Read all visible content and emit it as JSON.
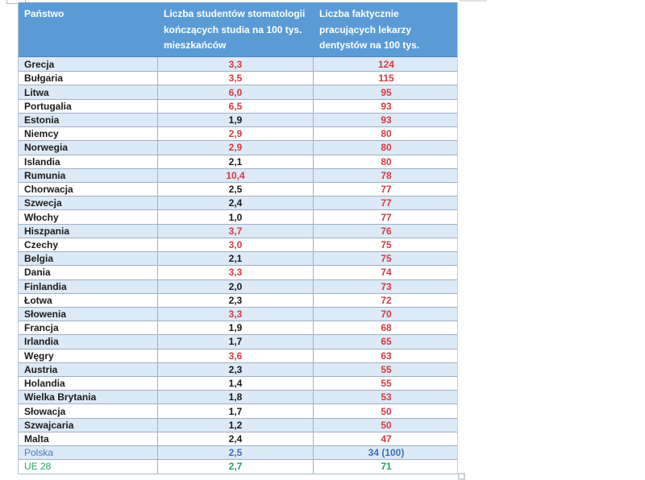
{
  "colors": {
    "header_bg": "#5B9BD5",
    "header_text": "#FFFFFF",
    "alt_row_bg": "#DCE9F6",
    "plain_row_bg": "#FFFFFF",
    "grid_border": "#9FB0C4",
    "red_value": "#D43B44",
    "black_value": "#1B1B1B",
    "poland_blue": "#3D6EB6",
    "eu_green": "#21A35C"
  },
  "table": {
    "header": {
      "col1": "Państwo",
      "col2": "Liczba studentów stomatologii kończących studia na 100 tys. mieszkańców",
      "col3": "Liczba faktycznie pracujących lekarzy dentystów na 100 tys. mieszkańców"
    },
    "rows": [
      {
        "country": "Grecja",
        "students": "3,3",
        "students_color": "red",
        "dentists": "124",
        "dentists_color": "red",
        "theme": "default"
      },
      {
        "country": "Bułgaria",
        "students": "3,5",
        "students_color": "red",
        "dentists": "115",
        "dentists_color": "red",
        "theme": "default"
      },
      {
        "country": "Litwa",
        "students": "6,0",
        "students_color": "red",
        "dentists": "95",
        "dentists_color": "red",
        "theme": "default"
      },
      {
        "country": "Portugalia",
        "students": "6,5",
        "students_color": "red",
        "dentists": "93",
        "dentists_color": "red",
        "theme": "default"
      },
      {
        "country": "Estonia",
        "students": "1,9",
        "students_color": "black",
        "dentists": "93",
        "dentists_color": "red",
        "theme": "default"
      },
      {
        "country": "Niemcy",
        "students": "2,9",
        "students_color": "red",
        "dentists": "80",
        "dentists_color": "red",
        "theme": "default"
      },
      {
        "country": "Norwegia",
        "students": "2,9",
        "students_color": "red",
        "dentists": "80",
        "dentists_color": "red",
        "theme": "default"
      },
      {
        "country": "Islandia",
        "students": "2,1",
        "students_color": "black",
        "dentists": "80",
        "dentists_color": "red",
        "theme": "default"
      },
      {
        "country": "Rumunia",
        "students": "10,4",
        "students_color": "red",
        "dentists": "78",
        "dentists_color": "red",
        "theme": "default"
      },
      {
        "country": "Chorwacja",
        "students": "2,5",
        "students_color": "black",
        "dentists": "77",
        "dentists_color": "red",
        "theme": "default"
      },
      {
        "country": "Szwecja",
        "students": "2,4",
        "students_color": "black",
        "dentists": "77",
        "dentists_color": "red",
        "theme": "default"
      },
      {
        "country": "Włochy",
        "students": "1,0",
        "students_color": "black",
        "dentists": "77",
        "dentists_color": "red",
        "theme": "default"
      },
      {
        "country": "Hiszpania",
        "students": "3,7",
        "students_color": "red",
        "dentists": "76",
        "dentists_color": "red",
        "theme": "default"
      },
      {
        "country": "Czechy",
        "students": "3,0",
        "students_color": "red",
        "dentists": "75",
        "dentists_color": "red",
        "theme": "default"
      },
      {
        "country": "Belgia",
        "students": "2,1",
        "students_color": "black",
        "dentists": "75",
        "dentists_color": "red",
        "theme": "default"
      },
      {
        "country": "Dania",
        "students": "3,3",
        "students_color": "red",
        "dentists": "74",
        "dentists_color": "red",
        "theme": "default"
      },
      {
        "country": "Finlandia",
        "students": "2,0",
        "students_color": "black",
        "dentists": "73",
        "dentists_color": "red",
        "theme": "default"
      },
      {
        "country": "Łotwa",
        "students": "2,3",
        "students_color": "black",
        "dentists": "72",
        "dentists_color": "red",
        "theme": "default"
      },
      {
        "country": "Słowenia",
        "students": "3,3",
        "students_color": "red",
        "dentists": "70",
        "dentists_color": "red",
        "theme": "default"
      },
      {
        "country": "Francja",
        "students": "1,9",
        "students_color": "black",
        "dentists": "68",
        "dentists_color": "red",
        "theme": "default"
      },
      {
        "country": "Irlandia",
        "students": "1,7",
        "students_color": "black",
        "dentists": "65",
        "dentists_color": "red",
        "theme": "default"
      },
      {
        "country": "Węgry",
        "students": "3,6",
        "students_color": "red",
        "dentists": "63",
        "dentists_color": "red",
        "theme": "default"
      },
      {
        "country": "Austria",
        "students": "2,3",
        "students_color": "black",
        "dentists": "55",
        "dentists_color": "red",
        "theme": "default"
      },
      {
        "country": "Holandia",
        "students": "1,4",
        "students_color": "black",
        "dentists": "55",
        "dentists_color": "red",
        "theme": "default"
      },
      {
        "country": "Wielka Brytania",
        "students": "1,8",
        "students_color": "black",
        "dentists": "53",
        "dentists_color": "red",
        "theme": "default"
      },
      {
        "country": "Słowacja",
        "students": "1,7",
        "students_color": "black",
        "dentists": "50",
        "dentists_color": "red",
        "theme": "default"
      },
      {
        "country": "Szwajcaria",
        "students": "1,2",
        "students_color": "black",
        "dentists": "50",
        "dentists_color": "red",
        "theme": "default"
      },
      {
        "country": "Malta",
        "students": "2,4",
        "students_color": "black",
        "dentists": "47",
        "dentists_color": "red",
        "theme": "default"
      },
      {
        "country": "Polska",
        "students": "2,5",
        "students_color": "blue",
        "dentists": "34 (100)",
        "dentists_color": "blue",
        "theme": "poland"
      },
      {
        "country": "UE 28",
        "students": "2,7",
        "students_color": "green",
        "dentists": "71",
        "dentists_color": "green",
        "theme": "eu"
      }
    ]
  }
}
